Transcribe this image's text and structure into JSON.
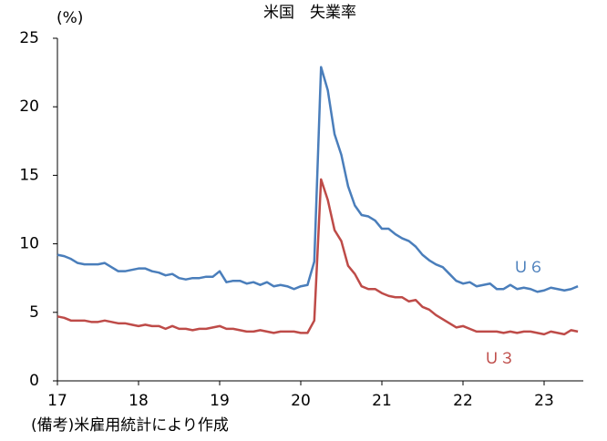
{
  "chart_data": {
    "type": "line",
    "title": "米国　失業率",
    "y_label": "(%)",
    "note": "(備考)米雇用統計により作成",
    "categories": [
      "17",
      null,
      null,
      null,
      null,
      null,
      null,
      null,
      null,
      null,
      null,
      null,
      "18",
      null,
      null,
      null,
      null,
      null,
      null,
      null,
      null,
      null,
      null,
      null,
      "19",
      null,
      null,
      null,
      null,
      null,
      null,
      null,
      null,
      null,
      null,
      null,
      "20",
      null,
      null,
      null,
      null,
      null,
      null,
      null,
      null,
      null,
      null,
      null,
      "21",
      null,
      null,
      null,
      null,
      null,
      null,
      null,
      null,
      null,
      null,
      null,
      "22",
      null,
      null,
      null,
      null,
      null,
      null,
      null,
      null,
      null,
      null,
      null,
      "23",
      null,
      null,
      null,
      null,
      null
    ],
    "series": [
      {
        "name": "Ｕ６",
        "color": "#4a7ebb",
        "values": [
          9.2,
          9.1,
          8.9,
          8.6,
          8.5,
          8.5,
          8.5,
          8.6,
          8.3,
          8.0,
          8.0,
          8.1,
          8.2,
          8.2,
          8.0,
          7.9,
          7.7,
          7.8,
          7.5,
          7.4,
          7.5,
          7.5,
          7.6,
          7.6,
          8.0,
          7.2,
          7.3,
          7.3,
          7.1,
          7.2,
          7.0,
          7.2,
          6.9,
          7.0,
          6.9,
          6.7,
          6.9,
          7.0,
          8.7,
          22.9,
          21.2,
          18.0,
          16.5,
          14.2,
          12.8,
          12.1,
          12.0,
          11.7,
          11.1,
          11.1,
          10.7,
          10.4,
          10.2,
          9.8,
          9.2,
          8.8,
          8.5,
          8.3,
          7.8,
          7.3,
          7.1,
          7.2,
          6.9,
          7.0,
          7.1,
          6.7,
          6.7,
          7.0,
          6.7,
          6.8,
          6.7,
          6.5,
          6.6,
          6.8,
          6.7,
          6.6,
          6.7,
          6.9
        ]
      },
      {
        "name": "Ｕ３",
        "color": "#be4b48",
        "values": [
          4.7,
          4.6,
          4.4,
          4.4,
          4.4,
          4.3,
          4.3,
          4.4,
          4.3,
          4.2,
          4.2,
          4.1,
          4.0,
          4.1,
          4.0,
          4.0,
          3.8,
          4.0,
          3.8,
          3.8,
          3.7,
          3.8,
          3.8,
          3.9,
          4.0,
          3.8,
          3.8,
          3.7,
          3.6,
          3.6,
          3.7,
          3.6,
          3.5,
          3.6,
          3.6,
          3.6,
          3.5,
          3.5,
          4.4,
          14.7,
          13.2,
          11.0,
          10.2,
          8.4,
          7.8,
          6.9,
          6.7,
          6.7,
          6.4,
          6.2,
          6.1,
          6.1,
          5.8,
          5.9,
          5.4,
          5.2,
          4.8,
          4.5,
          4.2,
          3.9,
          4.0,
          3.8,
          3.6,
          3.6,
          3.6,
          3.6,
          3.5,
          3.6,
          3.5,
          3.6,
          3.6,
          3.5,
          3.4,
          3.6,
          3.5,
          3.4,
          3.7,
          3.6
        ]
      }
    ],
    "ylim": [
      0,
      25
    ],
    "yticks": [
      0,
      5,
      10,
      15,
      20,
      25
    ],
    "grid": false
  }
}
